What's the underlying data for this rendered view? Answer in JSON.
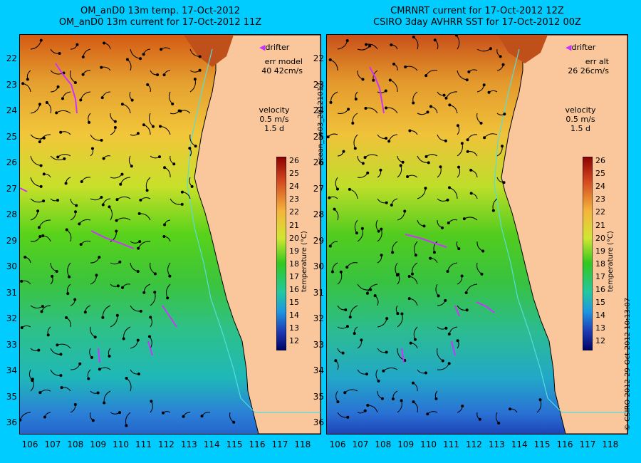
{
  "panels": [
    {
      "title_line1": "OM_anD0 13m temp. 17-Oct-2012",
      "title_line2": "OM_anD0 13m current for 17-Oct-2012 11Z",
      "drifter_label": "drifter",
      "err_label": "err model",
      "err_value": "40 42cm/s",
      "velocity_label": "velocity",
      "velocity_scale": "0.5 m/s",
      "velocity_time": "1.5 d",
      "colorbar_label": "temperature (°C)"
    },
    {
      "title_line1": "CMRNRT current for 17-Oct-2012 12Z",
      "title_line2": "CSIRO 3day AVHRR SST for 17-Oct-2012 00Z",
      "drifter_label": "drifter",
      "err_label": "err alt",
      "err_value": "26 26cm/s",
      "velocity_label": "velocity",
      "velocity_scale": "0.5 m/s",
      "velocity_time": "1.5 d",
      "colorbar_label": "temperature (°C)"
    }
  ],
  "latitudes": [
    "22",
    "23",
    "24",
    "25",
    "26",
    "27",
    "28",
    "29",
    "30",
    "31",
    "32",
    "33",
    "34",
    "35",
    "36"
  ],
  "longitudes": [
    "106",
    "107",
    "108",
    "109",
    "110",
    "111",
    "112",
    "113",
    "114",
    "115",
    "116",
    "117",
    "118"
  ],
  "colorbar_ticks": [
    "26",
    "25",
    "24",
    "23",
    "22",
    "21",
    "20",
    "19",
    "18",
    "17",
    "16",
    "15",
    "14",
    "13",
    "12"
  ],
  "side_labels": {
    "middle": "ocean_an03_20121017",
    "right": "© CSIRO 2012   29-Oct-2012 10:13:07"
  },
  "colors": {
    "background": "#00ccff",
    "land": "#f9c79b",
    "drifter": "#cc33ff",
    "coastline": "#000000",
    "shelf_contour": "#55dddd"
  }
}
